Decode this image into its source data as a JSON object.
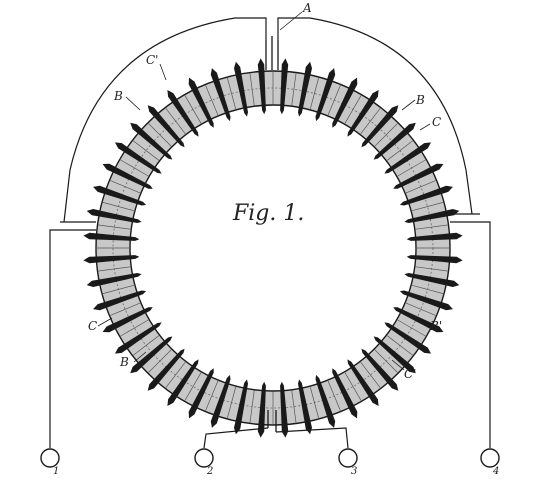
{
  "figure": {
    "title": "Fig. 1.",
    "labels": {
      "a": "A",
      "b_upper_left": "B",
      "c1_upper_left": "C'",
      "b_upper_right": "B",
      "c_upper_right": "C",
      "c_lower_left": "C",
      "b_lower_left": "B",
      "b1_lower_right": "B'",
      "c1_lower_right": "C'"
    },
    "terminals": [
      "1",
      "2",
      "3",
      "4"
    ],
    "coil_count": 48,
    "colors": {
      "ink": "#1a1a1a",
      "core": "#8a8a8a",
      "background": "#ffffff"
    }
  }
}
